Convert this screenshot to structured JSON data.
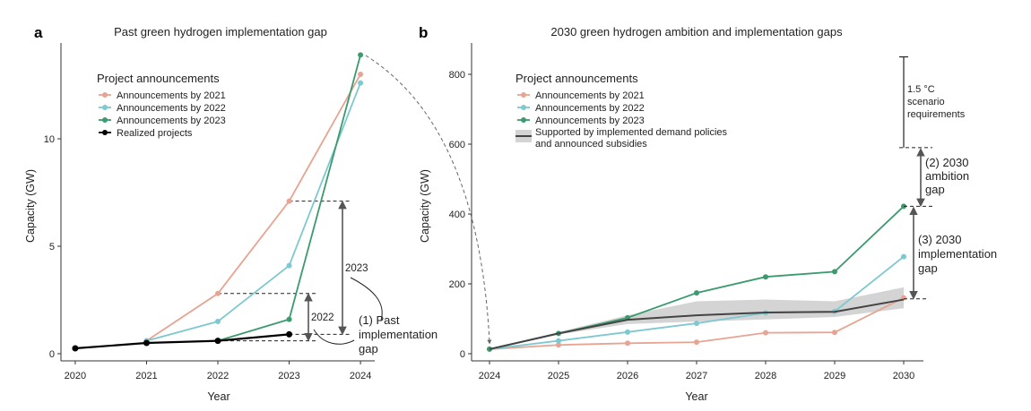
{
  "chart_data": [
    {
      "panel": "a",
      "type": "line",
      "title": "Past green hydrogen implementation gap",
      "xlabel": "Year",
      "ylabel": "Capacity (GW)",
      "x": [
        2020,
        2021,
        2022,
        2023,
        2024
      ],
      "xticks": [
        "2020",
        "2021",
        "2022",
        "2023",
        "2024"
      ],
      "yticks": [
        "0",
        "5",
        "10"
      ],
      "ylim": [
        0,
        14
      ],
      "legend_title": "Project announcements",
      "series": [
        {
          "name": "Announcements by 2021",
          "color": "#e8a493",
          "x": [
            2021,
            2022,
            2023,
            2024
          ],
          "values": [
            0.6,
            2.8,
            7.1,
            13.0
          ]
        },
        {
          "name": "Announcements by 2022",
          "color": "#7ec8cf",
          "x": [
            2021,
            2022,
            2023,
            2024
          ],
          "values": [
            0.6,
            1.5,
            4.1,
            12.6
          ]
        },
        {
          "name": "Announcements by 2023",
          "color": "#3b9a6e",
          "x": [
            2022,
            2023,
            2024
          ],
          "values": [
            0.6,
            1.6,
            13.9
          ]
        },
        {
          "name": "Realized projects",
          "color": "#000000",
          "x": [
            2020,
            2021,
            2022,
            2023
          ],
          "values": [
            0.25,
            0.5,
            0.6,
            0.9
          ]
        }
      ],
      "annotations": {
        "gap_2022": "2022",
        "gap_2023": "2023",
        "gap_1_line1": "(1) Past",
        "gap_1_line2": "implementation",
        "gap_1_line3": "gap"
      }
    },
    {
      "panel": "b",
      "type": "line",
      "title": "2030 green hydrogen ambition and implementation gaps",
      "xlabel": "Year",
      "ylabel": "Capacity (GW)",
      "x": [
        2024,
        2025,
        2026,
        2027,
        2028,
        2029,
        2030
      ],
      "xticks": [
        "2024",
        "2025",
        "2026",
        "2027",
        "2028",
        "2029",
        "2030"
      ],
      "yticks": [
        "0",
        "200",
        "400",
        "600",
        "800"
      ],
      "ylim": [
        0,
        850
      ],
      "legend_title": "Project announcements",
      "series": [
        {
          "name": "Announcements by 2021",
          "color": "#e8a493",
          "x": [
            2024,
            2025,
            2026,
            2027,
            2028,
            2029,
            2030
          ],
          "values": [
            13,
            25,
            30,
            33,
            60,
            61,
            160
          ]
        },
        {
          "name": "Announcements by 2022",
          "color": "#7ec8cf",
          "x": [
            2024,
            2025,
            2026,
            2027,
            2028,
            2029,
            2030
          ],
          "values": [
            13,
            37,
            62,
            87,
            117,
            121,
            278
          ]
        },
        {
          "name": "Announcements by 2023",
          "color": "#3b9a6e",
          "x": [
            2024,
            2025,
            2026,
            2027,
            2028,
            2029,
            2030
          ],
          "values": [
            13,
            58,
            103,
            174,
            220,
            235,
            422
          ]
        },
        {
          "name_line1": "Supported by implemented demand policies",
          "name_line2": "and announced subsidies",
          "color": "#444444",
          "band_color": "#d4d4d4",
          "x": [
            2024,
            2025,
            2026,
            2027,
            2028,
            2029,
            2030
          ],
          "values": [
            13,
            58,
            97,
            110,
            118,
            120,
            155
          ],
          "lower": [
            13,
            55,
            85,
            92,
            98,
            105,
            130
          ],
          "upper": [
            13,
            62,
            110,
            150,
            155,
            150,
            190
          ]
        }
      ],
      "annotations": {
        "scenario_line1": "1.5 °C",
        "scenario_line2": "scenario",
        "scenario_line3": "requirements",
        "ambition_line1": "(2) 2030",
        "ambition_line2": "ambition",
        "ambition_line3": "gap",
        "impl_line1": "(3) 2030",
        "impl_line2": "implementation",
        "impl_line3": "gap",
        "scenario_top": 850,
        "scenario_bottom": 590,
        "ambition_bottom": 422,
        "impl_bottom": 157
      }
    }
  ]
}
